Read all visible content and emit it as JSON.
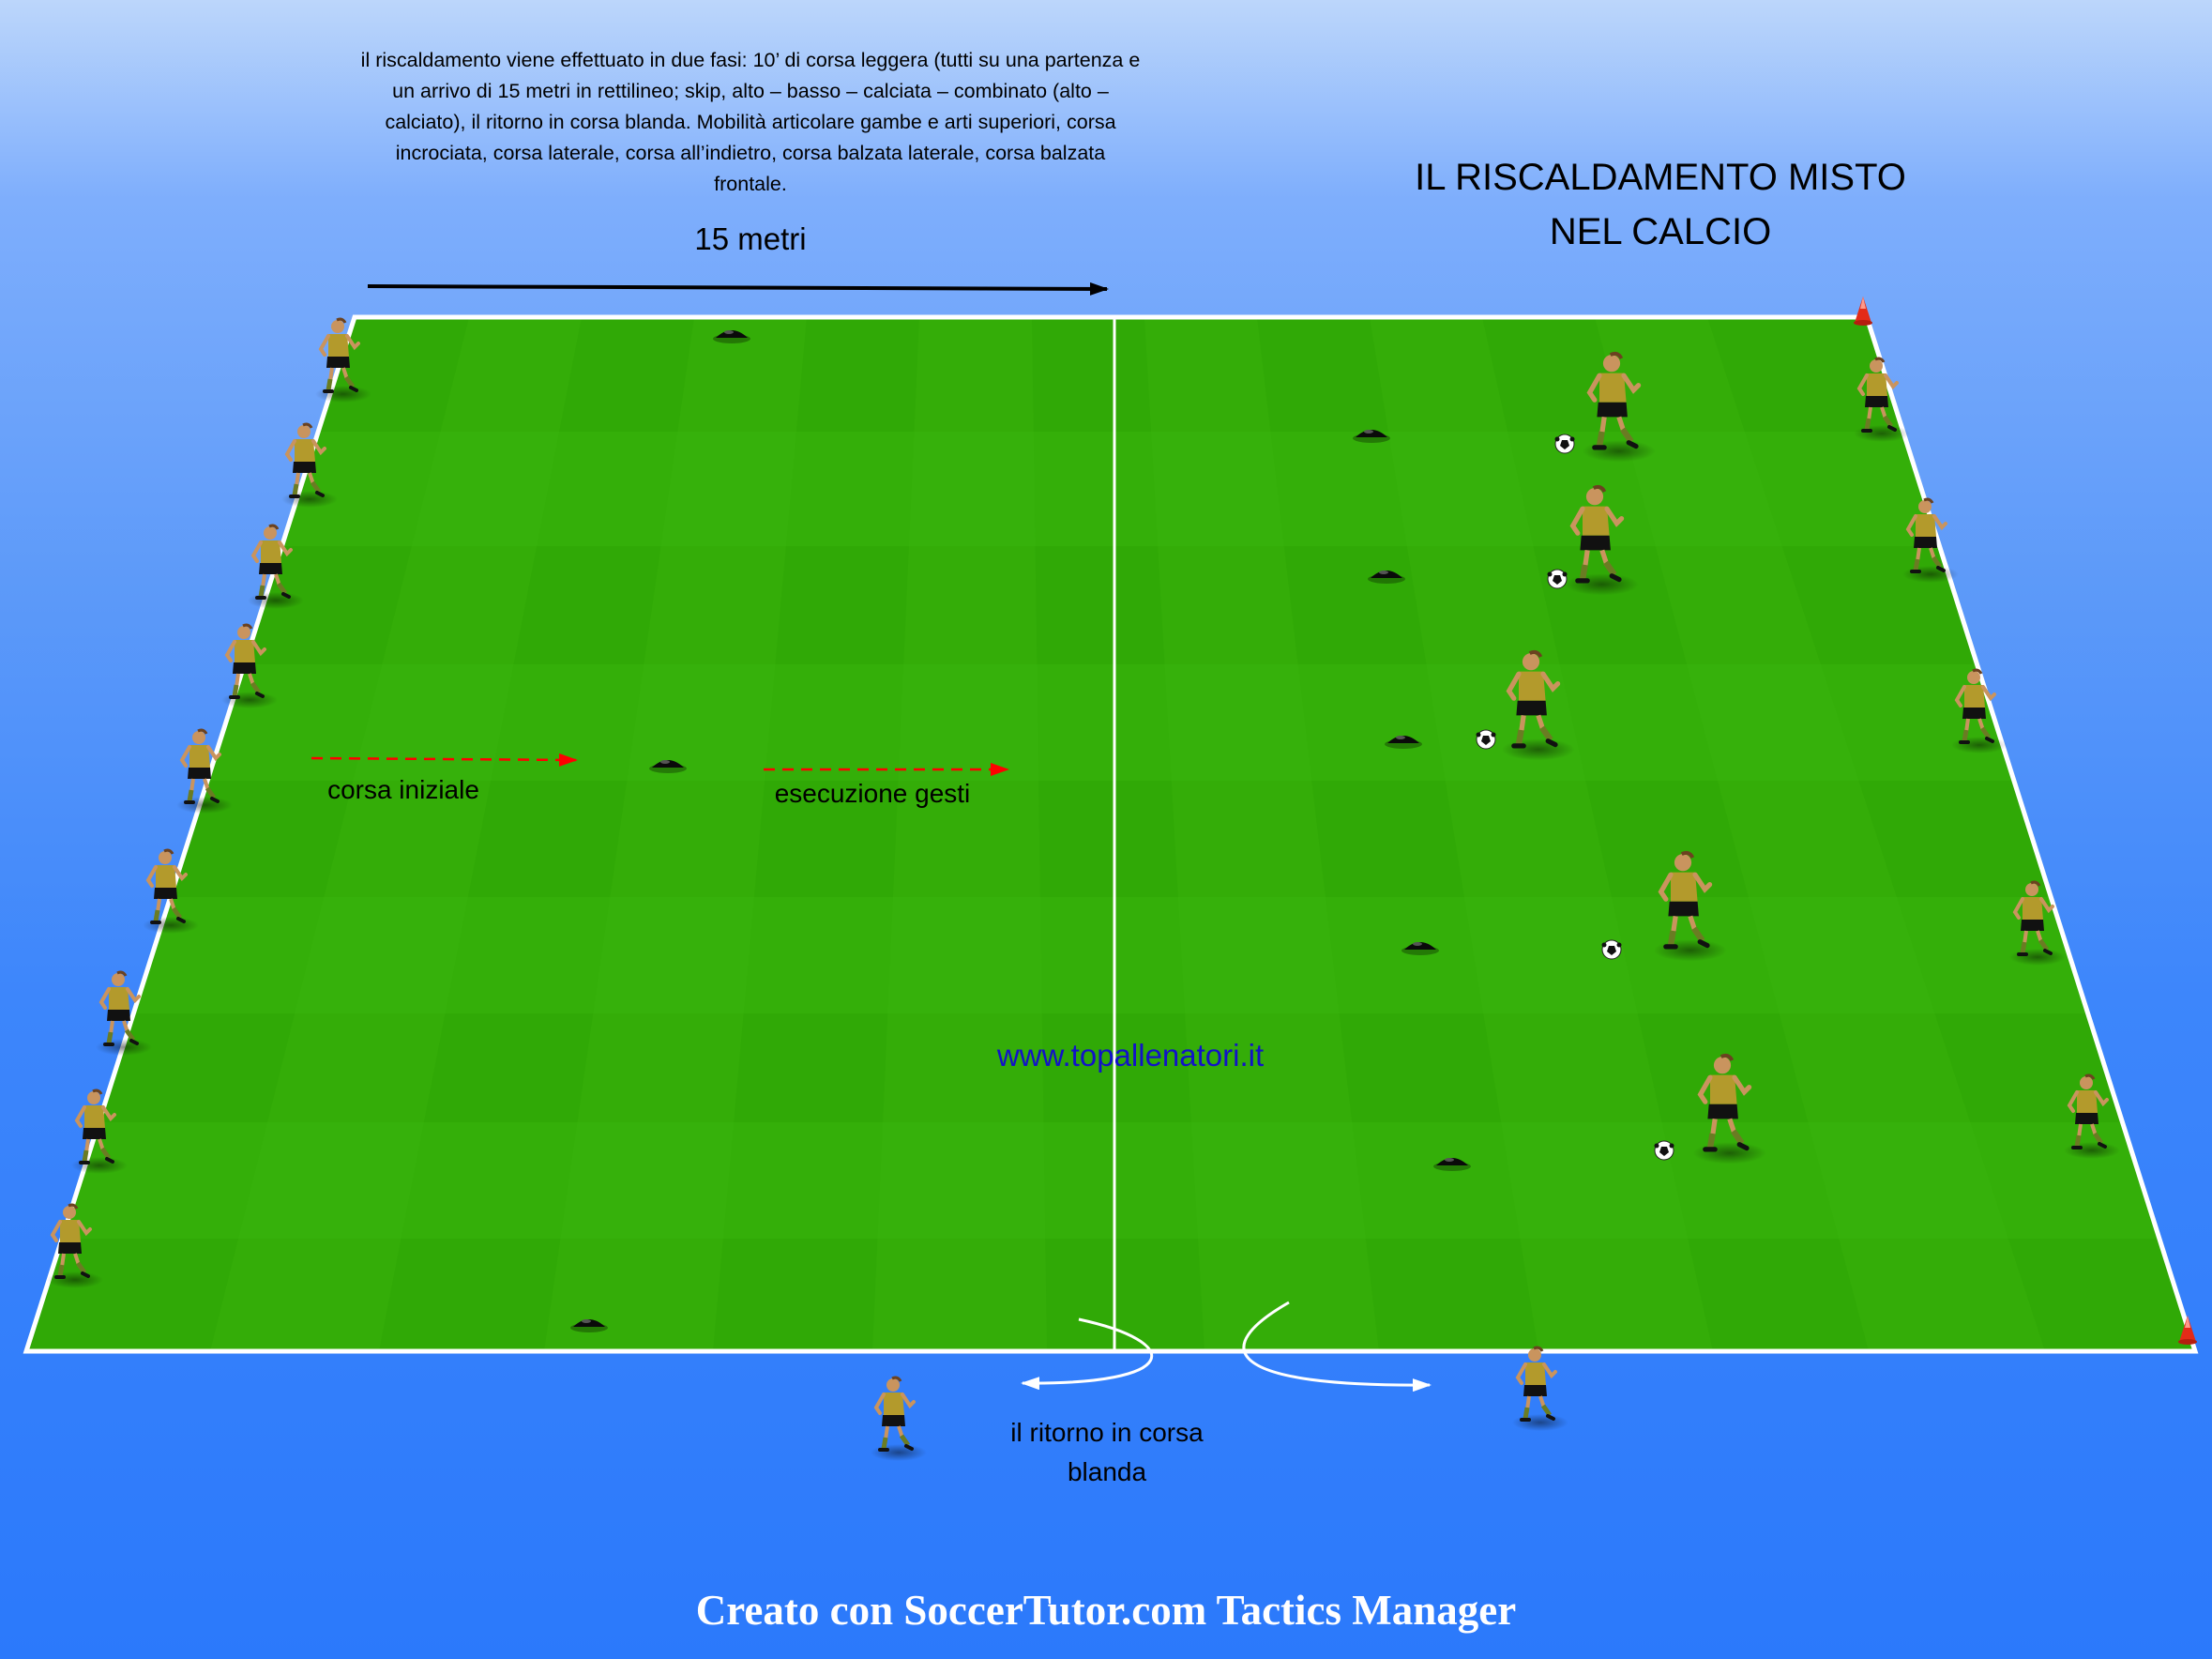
{
  "description": "il riscaldamento viene effettuato in due fasi: 10’ di corsa leggera (tutti su una partenza e un arrivo di 15 metri in rettilineo; skip, alto – basso – calciata – combinato (alto – calciato), il ritorno in corsa blanda. Mobilità articolare gambe e arti superiori, corsa incrociata, corsa laterale, corsa all’indietro, corsa balzata laterale, corsa balzata frontale.",
  "title_line1": "IL RISCALDAMENTO MISTO",
  "title_line2": "NEL CALCIO",
  "distance_label": "15 metri",
  "label_run_start": "corsa iniziale",
  "label_gestures": "esecuzione gesti",
  "label_return_line1": "il ritorno in corsa",
  "label_return_line2": "blanda",
  "website": "www.topallenatori.it",
  "footer": "Creato con SoccerTutor.com Tactics Manager",
  "colors": {
    "pitch_light": "#39b60a",
    "pitch_dark": "#2ea505",
    "line": "#ffffff",
    "arrow_red": "#ff0000",
    "player_shirt": "#b39a2c",
    "player_shorts": "#111111",
    "cone_red": "#e32b18"
  },
  "icons": [
    "player-icon",
    "ball-icon",
    "marker-cone-icon",
    "corner-cone-icon",
    "arrow-icon"
  ]
}
